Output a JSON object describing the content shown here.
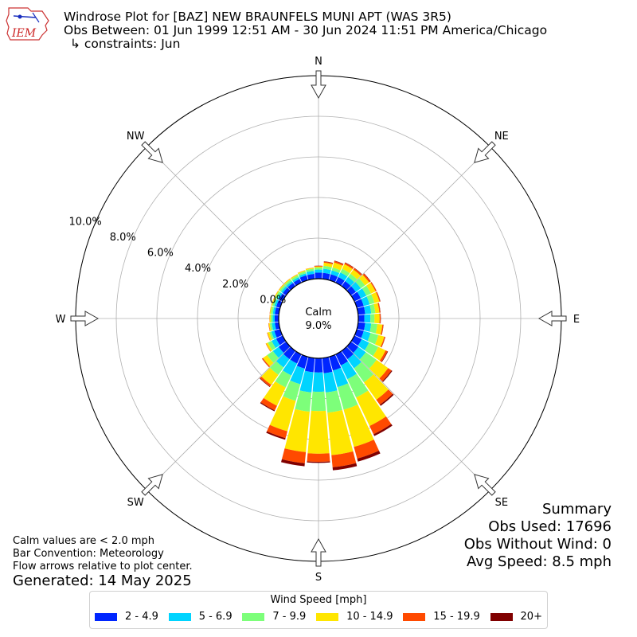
{
  "header": {
    "logo_text": "IEM",
    "title": "Windrose Plot for [BAZ] NEW BRAUNFELS MUNI APT (WAS 3R5)",
    "obs_between": "Obs Between: 01 Jun 1999 12:51 AM - 30 Jun 2024 11:51 PM America/Chicago",
    "constraints": "↳ constraints: Jun"
  },
  "summary": {
    "title": "Summary",
    "obs_used": "Obs Used: 17696",
    "obs_without_wind": "Obs Without Wind: 0",
    "avg_speed": "Avg Speed: 8.5 mph"
  },
  "notes": {
    "calm": "Calm values are < 2.0 mph",
    "bar_convention": "Bar Convention: Meteorology",
    "flow_arrows": "Flow arrows relative to plot center.",
    "generated": "Generated: 14 May 2025"
  },
  "chart_data": {
    "type": "windrose",
    "title": "Windrose Plot for [BAZ] NEW BRAUNFELS MUNI APT (WAS 3R5)",
    "calm_label": "Calm",
    "calm_value": "9.0%",
    "calm_percent": 9.0,
    "radial_unit": "percent",
    "radial_max": 10.0,
    "radial_ticks": [
      0,
      2,
      4,
      6,
      8,
      10
    ],
    "radial_tick_labels": [
      "0.0%",
      "2.0%",
      "4.0%",
      "6.0%",
      "8.0%",
      "10.0%"
    ],
    "compass_labels": [
      {
        "label": "N",
        "angle": 0
      },
      {
        "label": "NE",
        "angle": 45
      },
      {
        "label": "E",
        "angle": 90
      },
      {
        "label": "SE",
        "angle": 135
      },
      {
        "label": "S",
        "angle": 180
      },
      {
        "label": "SW",
        "angle": 225
      },
      {
        "label": "W",
        "angle": 270
      },
      {
        "label": "NW",
        "angle": 315
      }
    ],
    "direction_bins_deg": [
      0,
      10,
      20,
      30,
      40,
      50,
      60,
      70,
      80,
      90,
      100,
      110,
      120,
      130,
      140,
      150,
      160,
      170,
      180,
      190,
      200,
      210,
      220,
      230,
      240,
      250,
      260,
      270,
      280,
      290,
      300,
      310,
      320,
      330,
      340,
      350
    ],
    "legend_title": "Wind Speed [mph]",
    "series": [
      {
        "name": "2 - 4.9",
        "color": "#0026ff",
        "values": [
          0.3,
          0.3,
          0.3,
          0.3,
          0.3,
          0.3,
          0.35,
          0.35,
          0.35,
          0.3,
          0.35,
          0.35,
          0.4,
          0.45,
          0.5,
          0.6,
          0.7,
          0.75,
          0.7,
          0.7,
          0.6,
          0.5,
          0.5,
          0.45,
          0.35,
          0.3,
          0.2,
          0.2,
          0.2,
          0.2,
          0.2,
          0.2,
          0.2,
          0.2,
          0.25,
          0.25
        ]
      },
      {
        "name": "5 - 6.9",
        "color": "#00d4ff",
        "values": [
          0.15,
          0.2,
          0.2,
          0.25,
          0.25,
          0.3,
          0.3,
          0.3,
          0.3,
          0.3,
          0.3,
          0.35,
          0.4,
          0.45,
          0.55,
          0.75,
          0.85,
          0.95,
          0.95,
          1.0,
          0.8,
          0.65,
          0.5,
          0.35,
          0.25,
          0.15,
          0.15,
          0.1,
          0.1,
          0.1,
          0.1,
          0.1,
          0.1,
          0.1,
          0.1,
          0.15
        ]
      },
      {
        "name": "7 - 9.9",
        "color": "#7dff7a",
        "values": [
          0.1,
          0.15,
          0.15,
          0.2,
          0.2,
          0.25,
          0.25,
          0.25,
          0.2,
          0.2,
          0.3,
          0.4,
          0.5,
          0.65,
          0.85,
          1.0,
          1.15,
          1.0,
          0.95,
          0.95,
          0.85,
          0.65,
          0.45,
          0.35,
          0.2,
          0.1,
          0.1,
          0.1,
          0.1,
          0.1,
          0.1,
          0.1,
          0.1,
          0.1,
          0.1,
          0.1
        ]
      },
      {
        "name": "10 - 14.9",
        "color": "#ffe600",
        "values": [
          0.05,
          0.15,
          0.25,
          0.25,
          0.25,
          0.25,
          0.25,
          0.25,
          0.2,
          0.25,
          0.25,
          0.3,
          0.4,
          0.7,
          1.05,
          1.55,
          1.9,
          2.1,
          2.1,
          2.0,
          1.55,
          1.0,
          0.6,
          0.25,
          0.1,
          0.1,
          0.05,
          0.05,
          0.05,
          0.05,
          0.05,
          0.05,
          0.05,
          0.05,
          0.05,
          0.05
        ]
      },
      {
        "name": "15 - 19.9",
        "color": "#ff4a00",
        "values": [
          0.03,
          0.05,
          0.08,
          0.08,
          0.08,
          0.08,
          0.05,
          0.05,
          0.05,
          0.05,
          0.05,
          0.05,
          0.1,
          0.2,
          0.3,
          0.45,
          0.6,
          0.6,
          0.4,
          0.55,
          0.35,
          0.25,
          0.1,
          0.05,
          0.02,
          0.02,
          0.02,
          0.01,
          0.01,
          0.01,
          0.01,
          0.01,
          0.01,
          0.01,
          0.01,
          0.01
        ]
      },
      {
        "name": "20+",
        "color": "#800000",
        "values": [
          0.01,
          0.02,
          0.02,
          0.02,
          0.02,
          0.02,
          0.01,
          0.01,
          0.01,
          0.01,
          0.01,
          0.01,
          0.03,
          0.05,
          0.07,
          0.1,
          0.15,
          0.15,
          0.05,
          0.15,
          0.08,
          0.05,
          0.03,
          0.01,
          0,
          0,
          0,
          0,
          0,
          0,
          0,
          0,
          0,
          0,
          0,
          0
        ]
      }
    ]
  }
}
